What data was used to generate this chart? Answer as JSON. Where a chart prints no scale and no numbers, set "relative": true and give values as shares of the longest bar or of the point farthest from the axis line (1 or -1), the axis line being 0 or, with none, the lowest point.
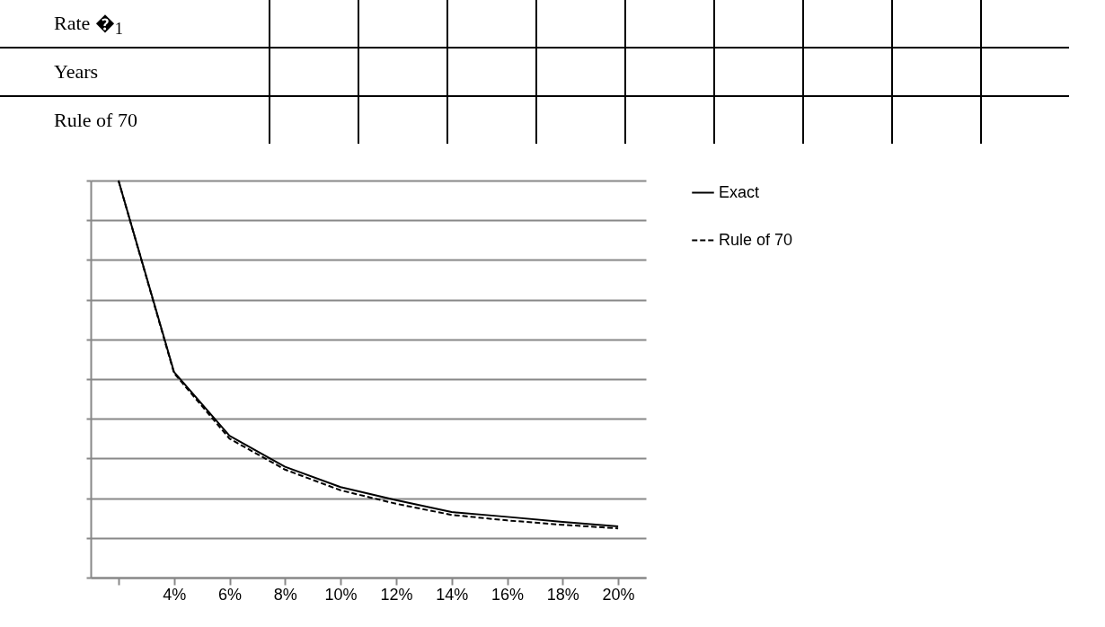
{
  "chart_data": {
    "type": "line",
    "relative": true,
    "categories": [
      null,
      "4%",
      "6%",
      "8%",
      "10%",
      "12%",
      "14%",
      "16%",
      "18%",
      "20%"
    ],
    "series": [
      {
        "name": "Exact",
        "color": "#000000",
        "line_style": "solid",
        "values": [
          1,
          0.518,
          0.357,
          0.279,
          0.228,
          0.195,
          0.165,
          0.153,
          0.14,
          0.129
        ]
      },
      {
        "name": "Rule of 70",
        "color": "#000000",
        "line_style": "dashed",
        "values": [
          1,
          0.515,
          0.35,
          0.272,
          0.22,
          0.186,
          0.158,
          0.144,
          0.133,
          0.124
        ]
      }
    ],
    "grid": "y",
    "legend": "right",
    "marker": "none",
    "annotations": [
      "Rate �$_{1}$",
      "Years",
      "Rule of 70"
    ]
  }
}
